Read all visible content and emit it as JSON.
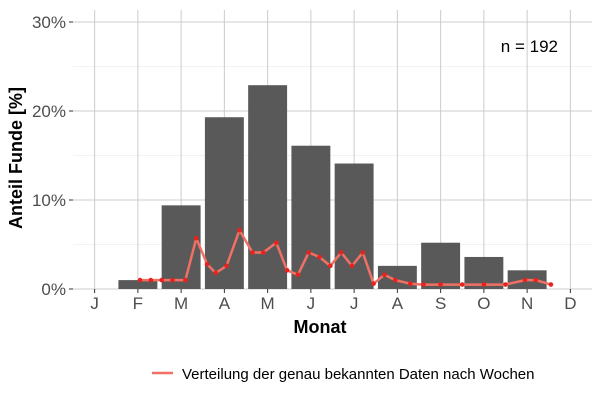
{
  "chart_data": {
    "type": "bar",
    "categories": [
      "J",
      "F",
      "M",
      "A",
      "M",
      "J",
      "J",
      "A",
      "S",
      "O",
      "N",
      "D"
    ],
    "values": [
      0,
      1.0,
      9.4,
      19.3,
      22.9,
      16.1,
      14.1,
      2.6,
      5.2,
      3.6,
      2.1,
      0
    ],
    "xlabel": "Monat",
    "ylabel": "Anteil Funde [%]",
    "ylim": [
      0,
      30
    ],
    "yticks": [
      0,
      10,
      20,
      30
    ],
    "ytick_labels": [
      "0%",
      "10%",
      "20%",
      "30%"
    ],
    "annotation": "n = 192",
    "grid": true,
    "legend_position": "bottom-right",
    "bar_color": "#595959",
    "line_color": "#f07066",
    "point_color": "#e8221c",
    "line_series": {
      "name": "Verteilung der genau bekannten Daten nach Wochen",
      "points": [
        [
          1.05,
          1.0
        ],
        [
          1.3,
          1.0
        ],
        [
          1.55,
          1.0
        ],
        [
          1.8,
          1.0
        ],
        [
          2.1,
          1.0
        ],
        [
          2.35,
          5.7
        ],
        [
          2.6,
          2.8
        ],
        [
          2.8,
          1.8
        ],
        [
          3.05,
          2.6
        ],
        [
          3.35,
          6.6
        ],
        [
          3.65,
          4.1
        ],
        [
          3.9,
          4.1
        ],
        [
          4.2,
          5.2
        ],
        [
          4.45,
          2.1
        ],
        [
          4.7,
          1.6
        ],
        [
          4.95,
          4.1
        ],
        [
          5.2,
          3.6
        ],
        [
          5.45,
          2.6
        ],
        [
          5.7,
          4.1
        ],
        [
          5.95,
          2.6
        ],
        [
          6.2,
          4.1
        ],
        [
          6.45,
          0.6
        ],
        [
          6.7,
          1.6
        ],
        [
          6.95,
          1.0
        ],
        [
          7.3,
          0.6
        ],
        [
          7.6,
          0.5
        ],
        [
          8.0,
          0.5
        ],
        [
          8.5,
          0.5
        ],
        [
          9.0,
          0.5
        ],
        [
          9.5,
          0.5
        ],
        [
          9.95,
          1.0
        ],
        [
          10.2,
          1.0
        ],
        [
          10.55,
          0.5
        ]
      ]
    }
  }
}
